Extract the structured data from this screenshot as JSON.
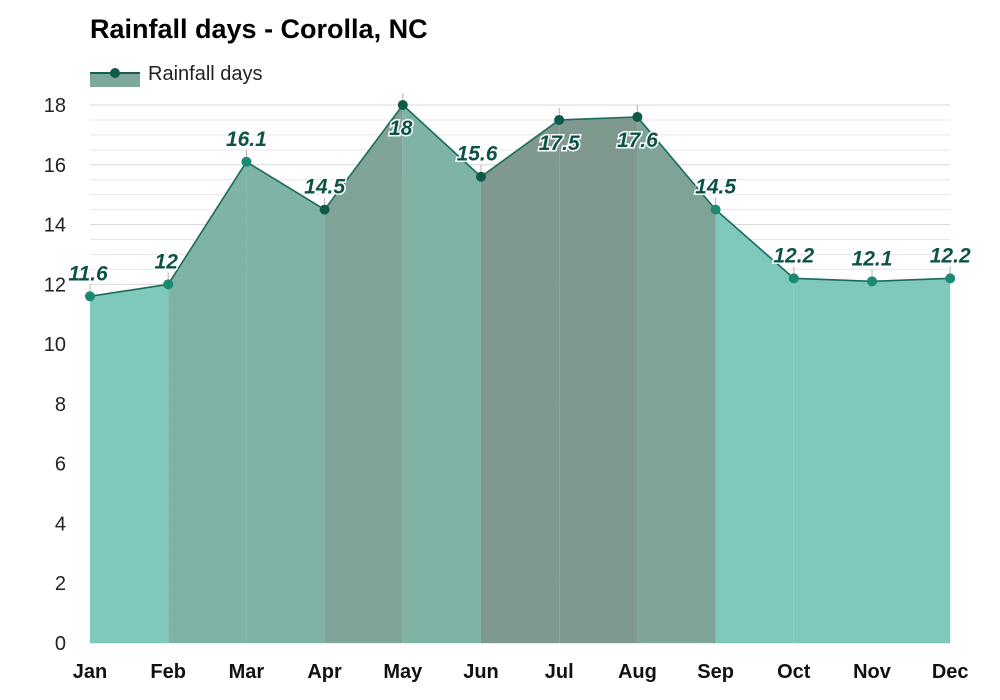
{
  "chart_data": {
    "type": "area",
    "title": "Rainfall days - Corolla, NC",
    "categories": [
      "Jan",
      "Feb",
      "Mar",
      "Apr",
      "May",
      "Jun",
      "Jul",
      "Aug",
      "Sep",
      "Oct",
      "Nov",
      "Dec"
    ],
    "series": [
      {
        "name": "Rainfall days",
        "values": [
          11.6,
          12,
          16.1,
          14.5,
          18,
          15.6,
          17.5,
          17.6,
          14.5,
          12.2,
          12.1,
          12.2
        ]
      }
    ],
    "data_labels": [
      "11.6",
      "12",
      "16.1",
      "14.5",
      "18",
      "15.6",
      "17.5",
      "17.6",
      "14.5",
      "12.2",
      "12.1",
      "12.2"
    ],
    "ylim": [
      0,
      18
    ],
    "yticks": [
      0,
      2,
      4,
      6,
      8,
      10,
      12,
      14,
      16,
      18
    ],
    "ytick_labels": [
      "0",
      "2",
      "4",
      "6",
      "8",
      "10",
      "12",
      "14",
      "16",
      "18"
    ],
    "grid": true,
    "legend_position": "top-left",
    "colors": {
      "line": "#1a6b5a",
      "marker": "#1b8a72",
      "marker_dark": "#0f5a4a",
      "label": "#0d5247",
      "legend_fill": "#7fa89c",
      "legend_line": "#1a5e50",
      "grid": "#e6e6e6",
      "fill_light": "#7fc9bc",
      "fill_mid": "#7fb3a6",
      "fill_dark": "#80a398",
      "fill_darkest": "#7f998f"
    },
    "month_shades": [
      "light",
      "mid",
      "mid",
      "dark",
      "mid",
      "darkest",
      "darkest",
      "dark",
      "light",
      "light",
      "light",
      "light"
    ]
  }
}
